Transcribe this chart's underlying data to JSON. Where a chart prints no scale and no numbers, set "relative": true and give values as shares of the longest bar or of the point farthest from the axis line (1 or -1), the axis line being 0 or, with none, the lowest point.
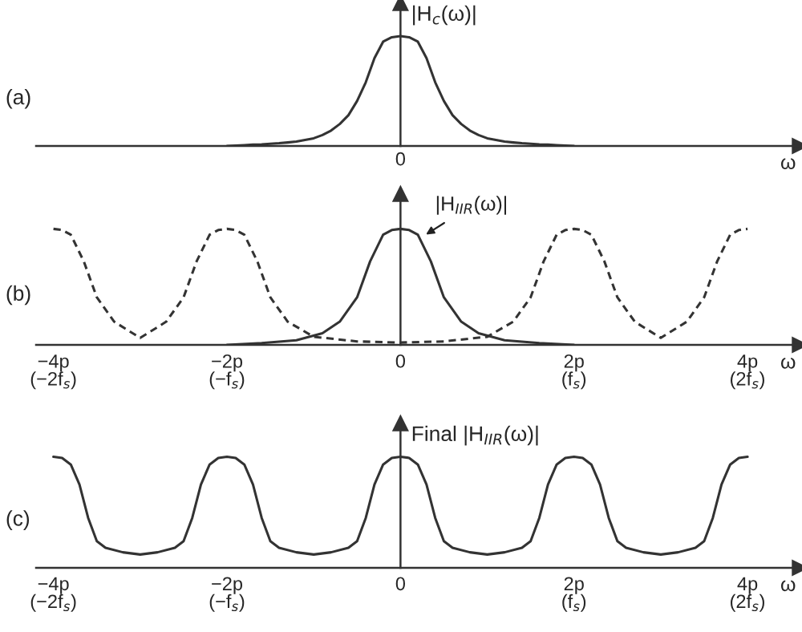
{
  "chart_data": [
    {
      "type": "line",
      "title": "(a)",
      "annotations": [
        "0"
      ],
      "ylabel": "|H$_{c}$(ω)|",
      "xlabel": "ω",
      "relative": true,
      "categories": [
        null,
        null,
        null,
        null,
        null,
        null,
        null,
        null,
        null,
        null,
        null,
        null,
        null,
        null,
        null,
        null,
        null,
        null,
        null,
        null,
        null,
        null,
        null,
        null,
        null,
        null,
        null,
        null,
        null,
        null,
        null,
        null,
        null,
        null,
        null,
        null,
        null,
        null,
        null,
        null,
        null,
        null,
        null,
        null,
        null,
        null,
        null,
        null,
        null,
        null,
        null,
        null,
        null,
        null,
        null,
        null,
        null,
        null,
        null,
        null,
        null,
        null,
        null,
        null,
        null,
        null,
        null,
        null,
        null,
        null,
        null,
        null,
        null,
        null,
        null,
        null,
        null,
        null,
        null,
        null,
        null,
        null,
        null,
        null,
        null,
        null,
        null,
        null,
        null
      ],
      "series": [
        {
          "color": "#333333",
          "line_style": "solid",
          "values": [
            null,
            null,
            null,
            null,
            null,
            null,
            null,
            null,
            null,
            null,
            null,
            null,
            null,
            null,
            null,
            null,
            null,
            null,
            null,
            null,
            null,
            null,
            0,
            0.004,
            0.008,
            0.012,
            0.015,
            0.02,
            0.025,
            0.032,
            0.04,
            0.055,
            0.07,
            0.1,
            0.14,
            0.2,
            0.28,
            0.41,
            0.58,
            0.8,
            0.95,
            0.99,
            1,
            0.99,
            0.95,
            0.8,
            0.58,
            0.41,
            0.28,
            0.2,
            0.14,
            0.1,
            0.07,
            0.055,
            0.04,
            0.032,
            0.025,
            0.02,
            0.015,
            0.012,
            0.008,
            0.004,
            0,
            null,
            null,
            null,
            null,
            null,
            null,
            null,
            null,
            null,
            null,
            null,
            null,
            null,
            null,
            null,
            null,
            null,
            null,
            null,
            null,
            null,
            null,
            null,
            null,
            null,
            null
          ]
        }
      ]
    },
    {
      "type": "line",
      "title": "(b)",
      "xlabel": "ω",
      "relative": true,
      "xlim": [
        -4.2,
        4.6
      ],
      "xticks": [
        {
          "value": -4,
          "label": "−4p\n(−2f$_{s}$)"
        },
        {
          "value": -2,
          "label": "−2p\n(−f$_{s}$)"
        },
        {
          "value": 0,
          "label": "0"
        },
        {
          "value": 2,
          "label": "2p\n(f$_{s}$)"
        },
        {
          "value": 4,
          "label": "4p\n(2f$_{s}$)"
        }
      ],
      "series": [
        {
          "name": "|H$_{IIR}$(ω)|",
          "color": "#333333",
          "line_style": "solid",
          "x": [
            -2,
            -1.6,
            -1.2,
            -0.9,
            -0.7,
            -0.5,
            -0.35,
            -0.2,
            -0.1,
            0,
            0.1,
            0.2,
            0.35,
            0.5,
            0.7,
            0.9,
            1.2,
            1.6,
            2
          ],
          "values": [
            0,
            0.015,
            0.04,
            0.1,
            0.2,
            0.41,
            0.72,
            0.95,
            0.99,
            1,
            0.99,
            0.95,
            0.72,
            0.41,
            0.2,
            0.1,
            0.04,
            0.015,
            0
          ]
        },
        {
          "color": "#333333",
          "line_style": "dashed",
          "x": [
            -4,
            -3.9,
            -3.8,
            -3.65,
            -3.5,
            -3.3,
            -3,
            -2.7,
            -2.5,
            -2.35,
            -2.2,
            -2.1,
            -2,
            -1.9,
            -1.8,
            -1.65,
            -1.5,
            -1.3,
            -1,
            -0.5,
            0,
            0.5,
            1,
            1.3,
            1.5,
            1.65,
            1.8,
            1.9,
            2,
            2.1,
            2.2,
            2.35,
            2.5,
            2.7,
            3,
            3.3,
            3.5,
            3.65,
            3.8,
            3.9,
            4
          ],
          "values": [
            1,
            0.99,
            0.95,
            0.72,
            0.41,
            0.2,
            0.06,
            0.2,
            0.41,
            0.72,
            0.95,
            0.99,
            1,
            0.99,
            0.95,
            0.72,
            0.41,
            0.2,
            0.07,
            0.03,
            0.02,
            0.03,
            0.07,
            0.2,
            0.41,
            0.72,
            0.95,
            0.99,
            1,
            0.99,
            0.95,
            0.72,
            0.41,
            0.2,
            0.06,
            0.2,
            0.41,
            0.72,
            0.95,
            0.99,
            1
          ]
        }
      ]
    },
    {
      "type": "line",
      "title": "(c)",
      "ylabel": "Final |H$_{IIR}$(ω)|",
      "xlabel": "ω",
      "relative": true,
      "xlim": [
        -4.2,
        4.6
      ],
      "xticks": [
        {
          "value": -4,
          "label": "−4p\n(−2f$_{s}$)"
        },
        {
          "value": -2,
          "label": "−2p\n(−f$_{s}$)"
        },
        {
          "value": 0,
          "label": "0"
        },
        {
          "value": 2,
          "label": "2p\n(f$_{s}$)"
        },
        {
          "value": 4,
          "label": "4p\n(2f$_{s}$)"
        }
      ],
      "series": [
        {
          "color": "#333333",
          "line_style": "solid",
          "x": [
            -4,
            -3.9,
            -3.8,
            -3.7,
            -3.6,
            -3.5,
            -3.4,
            -3.2,
            -3,
            -2.8,
            -2.6,
            -2.5,
            -2.4,
            -2.3,
            -2.2,
            -2.1,
            -2,
            -1.9,
            -1.8,
            -1.7,
            -1.6,
            -1.5,
            -1.4,
            -1.2,
            -1,
            -0.8,
            -0.6,
            -0.5,
            -0.4,
            -0.3,
            -0.2,
            -0.1,
            0,
            0.1,
            0.2,
            0.3,
            0.4,
            0.5,
            0.6,
            0.8,
            1,
            1.2,
            1.4,
            1.5,
            1.6,
            1.7,
            1.8,
            1.9,
            2,
            2.1,
            2.2,
            2.3,
            2.4,
            2.5,
            2.6,
            2.8,
            3,
            3.2,
            3.4,
            3.5,
            3.6,
            3.7,
            3.8,
            3.9,
            4
          ],
          "values": [
            1,
            0.99,
            0.93,
            0.75,
            0.45,
            0.24,
            0.18,
            0.14,
            0.12,
            0.14,
            0.18,
            0.24,
            0.45,
            0.75,
            0.93,
            0.99,
            1,
            0.99,
            0.93,
            0.75,
            0.45,
            0.24,
            0.18,
            0.14,
            0.12,
            0.14,
            0.18,
            0.24,
            0.45,
            0.75,
            0.93,
            0.99,
            1,
            0.99,
            0.93,
            0.75,
            0.45,
            0.24,
            0.18,
            0.14,
            0.12,
            0.14,
            0.18,
            0.24,
            0.45,
            0.75,
            0.93,
            0.99,
            1,
            0.99,
            0.93,
            0.75,
            0.45,
            0.24,
            0.18,
            0.14,
            0.12,
            0.14,
            0.18,
            0.24,
            0.45,
            0.75,
            0.93,
            0.99,
            1
          ]
        }
      ]
    }
  ]
}
